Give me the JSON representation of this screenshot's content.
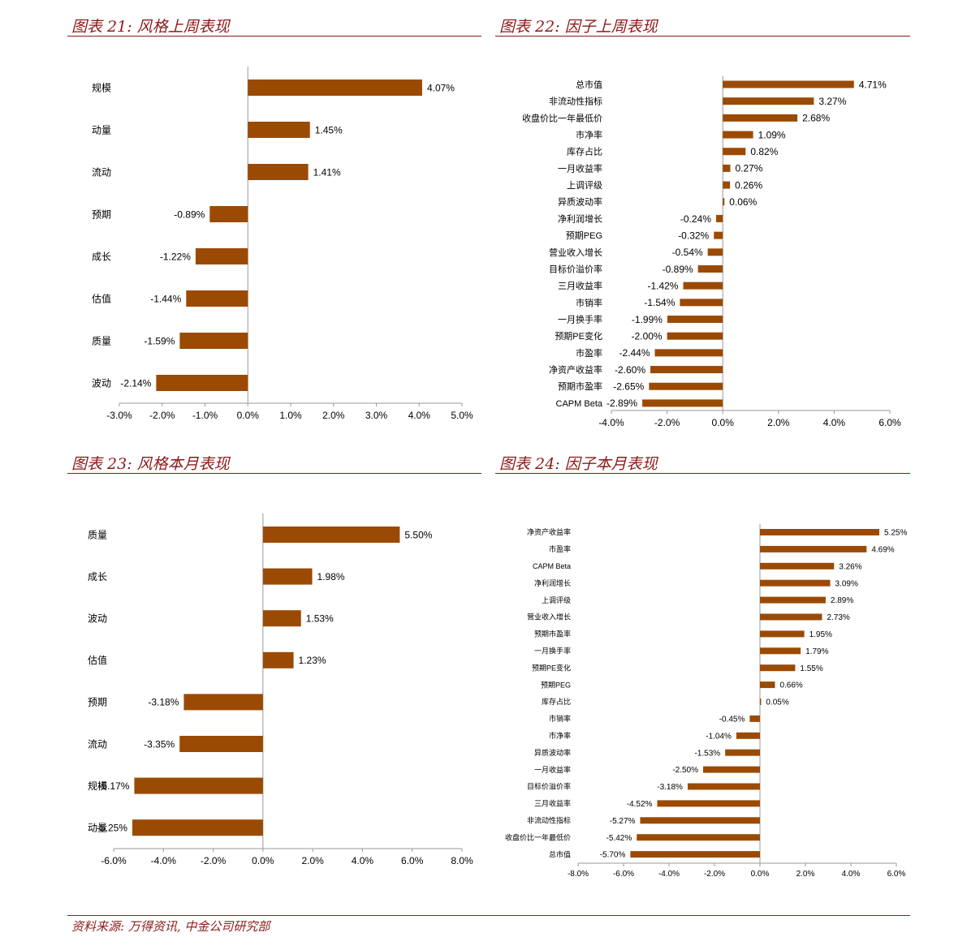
{
  "panels": [
    {
      "title": "图表 21:  风格上周表现"
    },
    {
      "title": "图表 22:  因子上周表现"
    },
    {
      "title": "图表 23:  风格本月表现"
    },
    {
      "title": "图表 24:  因子本月表现"
    }
  ],
  "source": "资料来源:  万得资讯,  中金公司研究部",
  "colors": {
    "bar": "#9b4a04",
    "title": "#8b1a1a"
  },
  "chart_data": [
    {
      "type": "bar",
      "orientation": "horizontal",
      "categories": [
        "规模",
        "动量",
        "流动",
        "预期",
        "成长",
        "估值",
        "质量",
        "波动"
      ],
      "values": [
        4.07,
        1.45,
        1.41,
        -0.89,
        -1.22,
        -1.44,
        -1.59,
        -2.14
      ],
      "data_labels": [
        "4.07%",
        "1.45%",
        "1.41%",
        "-0.89%",
        "-1.22%",
        "-1.44%",
        "-1.59%",
        "-2.14%"
      ],
      "xlim": [
        -3.0,
        5.0
      ],
      "x_ticks": [
        "-3.0%",
        "-2.0%",
        "-1.0%",
        "0.0%",
        "1.0%",
        "2.0%",
        "3.0%",
        "4.0%",
        "5.0%"
      ]
    },
    {
      "type": "bar",
      "orientation": "horizontal",
      "categories": [
        "总市值",
        "非流动性指标",
        "收盘价比一年最低价",
        "市净率",
        "库存占比",
        "一月收益率",
        "上调评级",
        "异质波动率",
        "净利润增长",
        "预期PEG",
        "营业收入增长",
        "目标价溢价率",
        "三月收益率",
        "市销率",
        "一月换手率",
        "预期PE变化",
        "市盈率",
        "净资产收益率",
        "预期市盈率",
        "CAPM Beta"
      ],
      "values": [
        4.71,
        3.27,
        2.68,
        1.09,
        0.82,
        0.27,
        0.26,
        0.06,
        -0.24,
        -0.32,
        -0.54,
        -0.89,
        -1.42,
        -1.54,
        -1.99,
        -2.0,
        -2.44,
        -2.6,
        -2.65,
        -2.89
      ],
      "data_labels": [
        "4.71%",
        "3.27%",
        "2.68%",
        "1.09%",
        "0.82%",
        "0.27%",
        "0.26%",
        "0.06%",
        "-0.24%",
        "-0.32%",
        "-0.54%",
        "-0.89%",
        "-1.42%",
        "-1.54%",
        "-1.99%",
        "-2.00%",
        "-2.44%",
        "-2.60%",
        "-2.65%",
        "-2.89%"
      ],
      "xlim": [
        -4.0,
        6.0
      ],
      "x_ticks": [
        "-4.0%",
        "-2.0%",
        "0.0%",
        "2.0%",
        "4.0%",
        "6.0%"
      ]
    },
    {
      "type": "bar",
      "orientation": "horizontal",
      "categories": [
        "质量",
        "成长",
        "波动",
        "估值",
        "预期",
        "流动",
        "规模",
        "动量"
      ],
      "values": [
        5.5,
        1.98,
        1.53,
        1.23,
        -3.18,
        -3.35,
        -5.17,
        -5.25
      ],
      "data_labels": [
        "5.50%",
        "1.98%",
        "1.53%",
        "1.23%",
        "-3.18%",
        "-3.35%",
        "-5.17%",
        "-5.25%"
      ],
      "xlim": [
        -6.0,
        8.0
      ],
      "x_ticks": [
        "-6.0%",
        "-4.0%",
        "-2.0%",
        "0.0%",
        "2.0%",
        "4.0%",
        "6.0%",
        "8.0%"
      ]
    },
    {
      "type": "bar",
      "orientation": "horizontal",
      "categories": [
        "净资产收益率",
        "市盈率",
        "CAPM Beta",
        "净利润增长",
        "上调评级",
        "营业收入增长",
        "预期市盈率",
        "一月换手率",
        "预期PE变化",
        "预期PEG",
        "库存占比",
        "市销率",
        "市净率",
        "异质波动率",
        "一月收益率",
        "目标价溢价率",
        "三月收益率",
        "非流动性指标",
        "收盘价比一年最低价",
        "总市值"
      ],
      "values": [
        5.25,
        4.69,
        3.26,
        3.09,
        2.89,
        2.73,
        1.95,
        1.79,
        1.55,
        0.66,
        0.05,
        -0.45,
        -1.04,
        -1.53,
        -2.5,
        -3.18,
        -4.52,
        -5.27,
        -5.42,
        -5.7
      ],
      "data_labels": [
        "5.25%",
        "4.69%",
        "3.26%",
        "3.09%",
        "2.89%",
        "2.73%",
        "1.95%",
        "1.79%",
        "1.55%",
        "0.66%",
        "0.05%",
        "-0.45%",
        "-1.04%",
        "-1.53%",
        "-2.50%",
        "-3.18%",
        "-4.52%",
        "-5.27%",
        "-5.42%",
        "-5.70%"
      ],
      "xlim": [
        -8.0,
        6.0
      ],
      "x_ticks": [
        "-8.0%",
        "-6.0%",
        "-4.0%",
        "-2.0%",
        "0.0%",
        "2.0%",
        "4.0%",
        "6.0%"
      ]
    }
  ]
}
